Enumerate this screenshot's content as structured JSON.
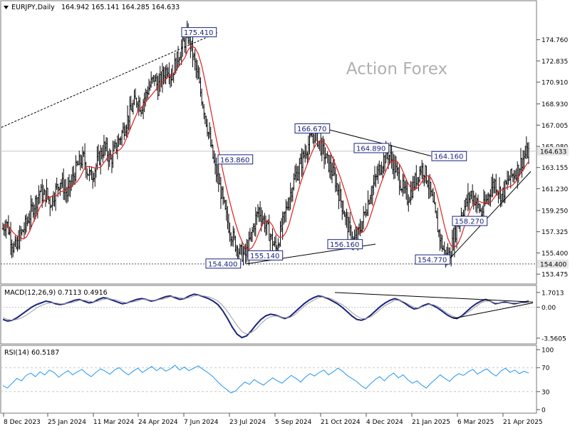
{
  "header": {
    "symbol": "EURJPY,Daily",
    "ohlc": "164.942 165.141 164.285 164.633"
  },
  "watermark": "Action Forex",
  "colors": {
    "candle": "#0a0a0a",
    "ma": "#e0201f",
    "trendline": "#000000",
    "label_text": "#1a237e",
    "macd_main": "#1a237e",
    "macd_signal": "#9e9e9e",
    "rsi": "#2196f3",
    "grid": "#c8c8c8",
    "watermark": "#b0b0b0"
  },
  "chart_data": [
    {
      "type": "candlestick",
      "panel": "price",
      "y_ticks": [
        "174.760",
        "172.835",
        "170.910",
        "168.930",
        "167.005",
        "165.080",
        "163.155",
        "161.230",
        "159.250",
        "157.325",
        "155.400",
        "153.475"
      ],
      "ylim": [
        152.9,
        177.2
      ],
      "x_ticks": [
        "8 Dec 2023",
        "25 Jan 2024",
        "11 Mar 2024",
        "24 Apr 2024",
        "7 Jun 2024",
        "23 Jul 2024",
        "5 Sep 2024",
        "21 Oct 2024",
        "4 Dec 2024",
        "21 Jan 2025",
        "6 Mar 2025",
        "21 Apr 2025"
      ],
      "current_price": "164.633",
      "support_level": "154.400",
      "annotations": [
        "175.410",
        "163.860",
        "154.400",
        "155.140",
        "156.160",
        "166.670",
        "164.890",
        "164.160",
        "158.270",
        "154.770"
      ],
      "close_series": [
        157.6,
        158.3,
        157.2,
        156.0,
        155.8,
        156.9,
        157.4,
        158.1,
        158.8,
        159.6,
        160.2,
        161.0,
        160.5,
        160.8,
        159.9,
        160.6,
        161.3,
        162.0,
        161.4,
        160.7,
        161.5,
        162.4,
        163.2,
        163.7,
        164.0,
        162.9,
        162.3,
        162.8,
        163.6,
        164.3,
        165.0,
        164.5,
        163.8,
        164.6,
        165.3,
        166.0,
        166.8,
        167.6,
        168.3,
        169.0,
        169.4,
        168.6,
        169.5,
        170.2,
        170.8,
        171.3,
        170.4,
        171.2,
        171.8,
        172.3,
        171.5,
        172.4,
        173.2,
        174.0,
        174.6,
        175.1,
        174.0,
        172.5,
        171.0,
        169.5,
        168.0,
        166.3,
        164.6,
        163.0,
        161.8,
        160.5,
        159.0,
        157.9,
        157.0,
        156.2,
        155.6,
        155.3,
        155.2,
        156.1,
        157.3,
        158.5,
        159.3,
        158.6,
        157.9,
        157.2,
        156.4,
        155.8,
        156.8,
        158.0,
        159.3,
        160.5,
        161.6,
        162.5,
        163.2,
        164.0,
        164.8,
        165.5,
        166.2,
        166.0,
        165.3,
        164.6,
        163.9,
        163.2,
        162.6,
        161.6,
        160.5,
        159.4,
        158.2,
        157.2,
        156.5,
        156.7,
        157.6,
        158.6,
        159.7,
        160.8,
        161.6,
        162.4,
        163.2,
        163.9,
        164.5,
        164.1,
        163.4,
        162.6,
        161.8,
        161.0,
        160.4,
        160.9,
        161.7,
        162.4,
        163.1,
        162.9,
        162.0,
        160.7,
        159.2,
        157.7,
        156.4,
        155.4,
        154.9,
        155.8,
        157.0,
        158.1,
        158.9,
        159.6,
        160.3,
        160.8,
        160.3,
        159.6,
        159.0,
        159.8,
        160.6,
        161.4,
        161.8,
        161.2,
        160.6,
        161.3,
        162.0,
        162.4,
        162.7,
        163.1,
        163.8,
        164.3,
        164.6
      ]
    },
    {
      "type": "line",
      "panel": "macd",
      "label": "MACD(12,26,9) 0.7113 0.4916",
      "y_ticks": [
        "1.7013",
        "0.00",
        "-3.5605"
      ],
      "ylim": [
        -3.9,
        2.1
      ],
      "series": [
        {
          "name": "MACD",
          "values": [
            -1.4,
            -1.6,
            -1.5,
            -1.2,
            -0.8,
            -0.4,
            0.0,
            0.3,
            0.5,
            0.7,
            0.6,
            0.4,
            0.3,
            0.4,
            0.6,
            0.8,
            0.9,
            0.7,
            0.5,
            0.6,
            0.9,
            1.1,
            1.0,
            0.8,
            0.6,
            0.4,
            0.5,
            0.7,
            0.9,
            1.0,
            0.9,
            0.7,
            0.8,
            1.0,
            1.2,
            1.3,
            1.1,
            0.9,
            1.0,
            1.3,
            1.5,
            1.4,
            1.2,
            1.0,
            0.7,
            0.3,
            -0.4,
            -1.3,
            -2.3,
            -3.1,
            -3.5,
            -3.3,
            -2.7,
            -2.0,
            -1.4,
            -1.0,
            -0.8,
            -0.9,
            -1.1,
            -1.3,
            -1.1,
            -0.6,
            -0.1,
            0.4,
            0.8,
            1.1,
            1.3,
            1.2,
            1.0,
            0.7,
            0.4,
            0.0,
            -0.5,
            -1.0,
            -1.4,
            -1.5,
            -1.3,
            -0.9,
            -0.4,
            0.1,
            0.5,
            0.8,
            1.0,
            0.8,
            0.5,
            0.1,
            -0.2,
            -0.1,
            0.2,
            0.4,
            0.2,
            -0.1,
            -0.5,
            -0.9,
            -1.2,
            -1.3,
            -1.0,
            -0.5,
            0.0,
            0.4,
            0.7,
            0.9,
            0.7,
            0.4,
            0.5,
            0.6,
            0.5,
            0.4,
            0.5,
            0.6,
            0.7
          ]
        },
        {
          "name": "Signal",
          "values": [
            -1.2,
            -1.4,
            -1.5,
            -1.4,
            -1.2,
            -0.9,
            -0.5,
            -0.1,
            0.2,
            0.4,
            0.5,
            0.5,
            0.4,
            0.4,
            0.5,
            0.6,
            0.8,
            0.8,
            0.7,
            0.6,
            0.7,
            0.9,
            1.0,
            0.9,
            0.8,
            0.6,
            0.5,
            0.6,
            0.7,
            0.9,
            0.9,
            0.8,
            0.8,
            0.9,
            1.0,
            1.2,
            1.2,
            1.1,
            1.0,
            1.1,
            1.3,
            1.4,
            1.3,
            1.2,
            1.0,
            0.7,
            0.2,
            -0.5,
            -1.3,
            -2.1,
            -2.8,
            -3.1,
            -2.9,
            -2.5,
            -1.9,
            -1.4,
            -1.1,
            -1.0,
            -1.1,
            -1.2,
            -1.2,
            -0.9,
            -0.4,
            0.1,
            0.5,
            0.8,
            1.1,
            1.2,
            1.1,
            0.9,
            0.6,
            0.3,
            -0.1,
            -0.6,
            -1.0,
            -1.3,
            -1.3,
            -1.1,
            -0.7,
            -0.2,
            0.2,
            0.5,
            0.8,
            0.8,
            0.6,
            0.3,
            0.0,
            -0.1,
            0.1,
            0.3,
            0.3,
            0.1,
            -0.3,
            -0.7,
            -1.0,
            -1.2,
            -1.1,
            -0.7,
            -0.3,
            0.1,
            0.5,
            0.7,
            0.7,
            0.5,
            0.5,
            0.5,
            0.5,
            0.5,
            0.5,
            0.5,
            0.5
          ]
        }
      ]
    },
    {
      "type": "line",
      "panel": "rsi",
      "label": "RSI(14) 60.5187",
      "y_ticks": [
        "100",
        "70",
        "30",
        "0"
      ],
      "ylim": [
        0,
        100
      ],
      "series": [
        {
          "name": "RSI",
          "values": [
            40,
            36,
            44,
            52,
            48,
            57,
            61,
            55,
            63,
            58,
            66,
            62,
            54,
            60,
            65,
            58,
            63,
            67,
            60,
            55,
            62,
            68,
            64,
            59,
            66,
            70,
            63,
            58,
            64,
            69,
            62,
            67,
            72,
            65,
            70,
            64,
            68,
            74,
            66,
            71,
            65,
            69,
            73,
            67,
            62,
            56,
            48,
            40,
            34,
            28,
            31,
            39,
            46,
            42,
            50,
            45,
            41,
            47,
            53,
            48,
            44,
            51,
            57,
            52,
            46,
            54,
            60,
            56,
            62,
            66,
            58,
            63,
            69,
            64,
            57,
            52,
            47,
            40,
            35,
            43,
            50,
            55,
            48,
            56,
            61,
            53,
            58,
            50,
            44,
            48,
            41,
            36,
            44,
            51,
            58,
            52,
            47,
            55,
            60,
            57,
            63,
            67,
            59,
            64,
            68,
            61,
            56,
            64,
            69,
            62,
            66,
            60,
            64,
            61
          ]
        }
      ]
    }
  ]
}
